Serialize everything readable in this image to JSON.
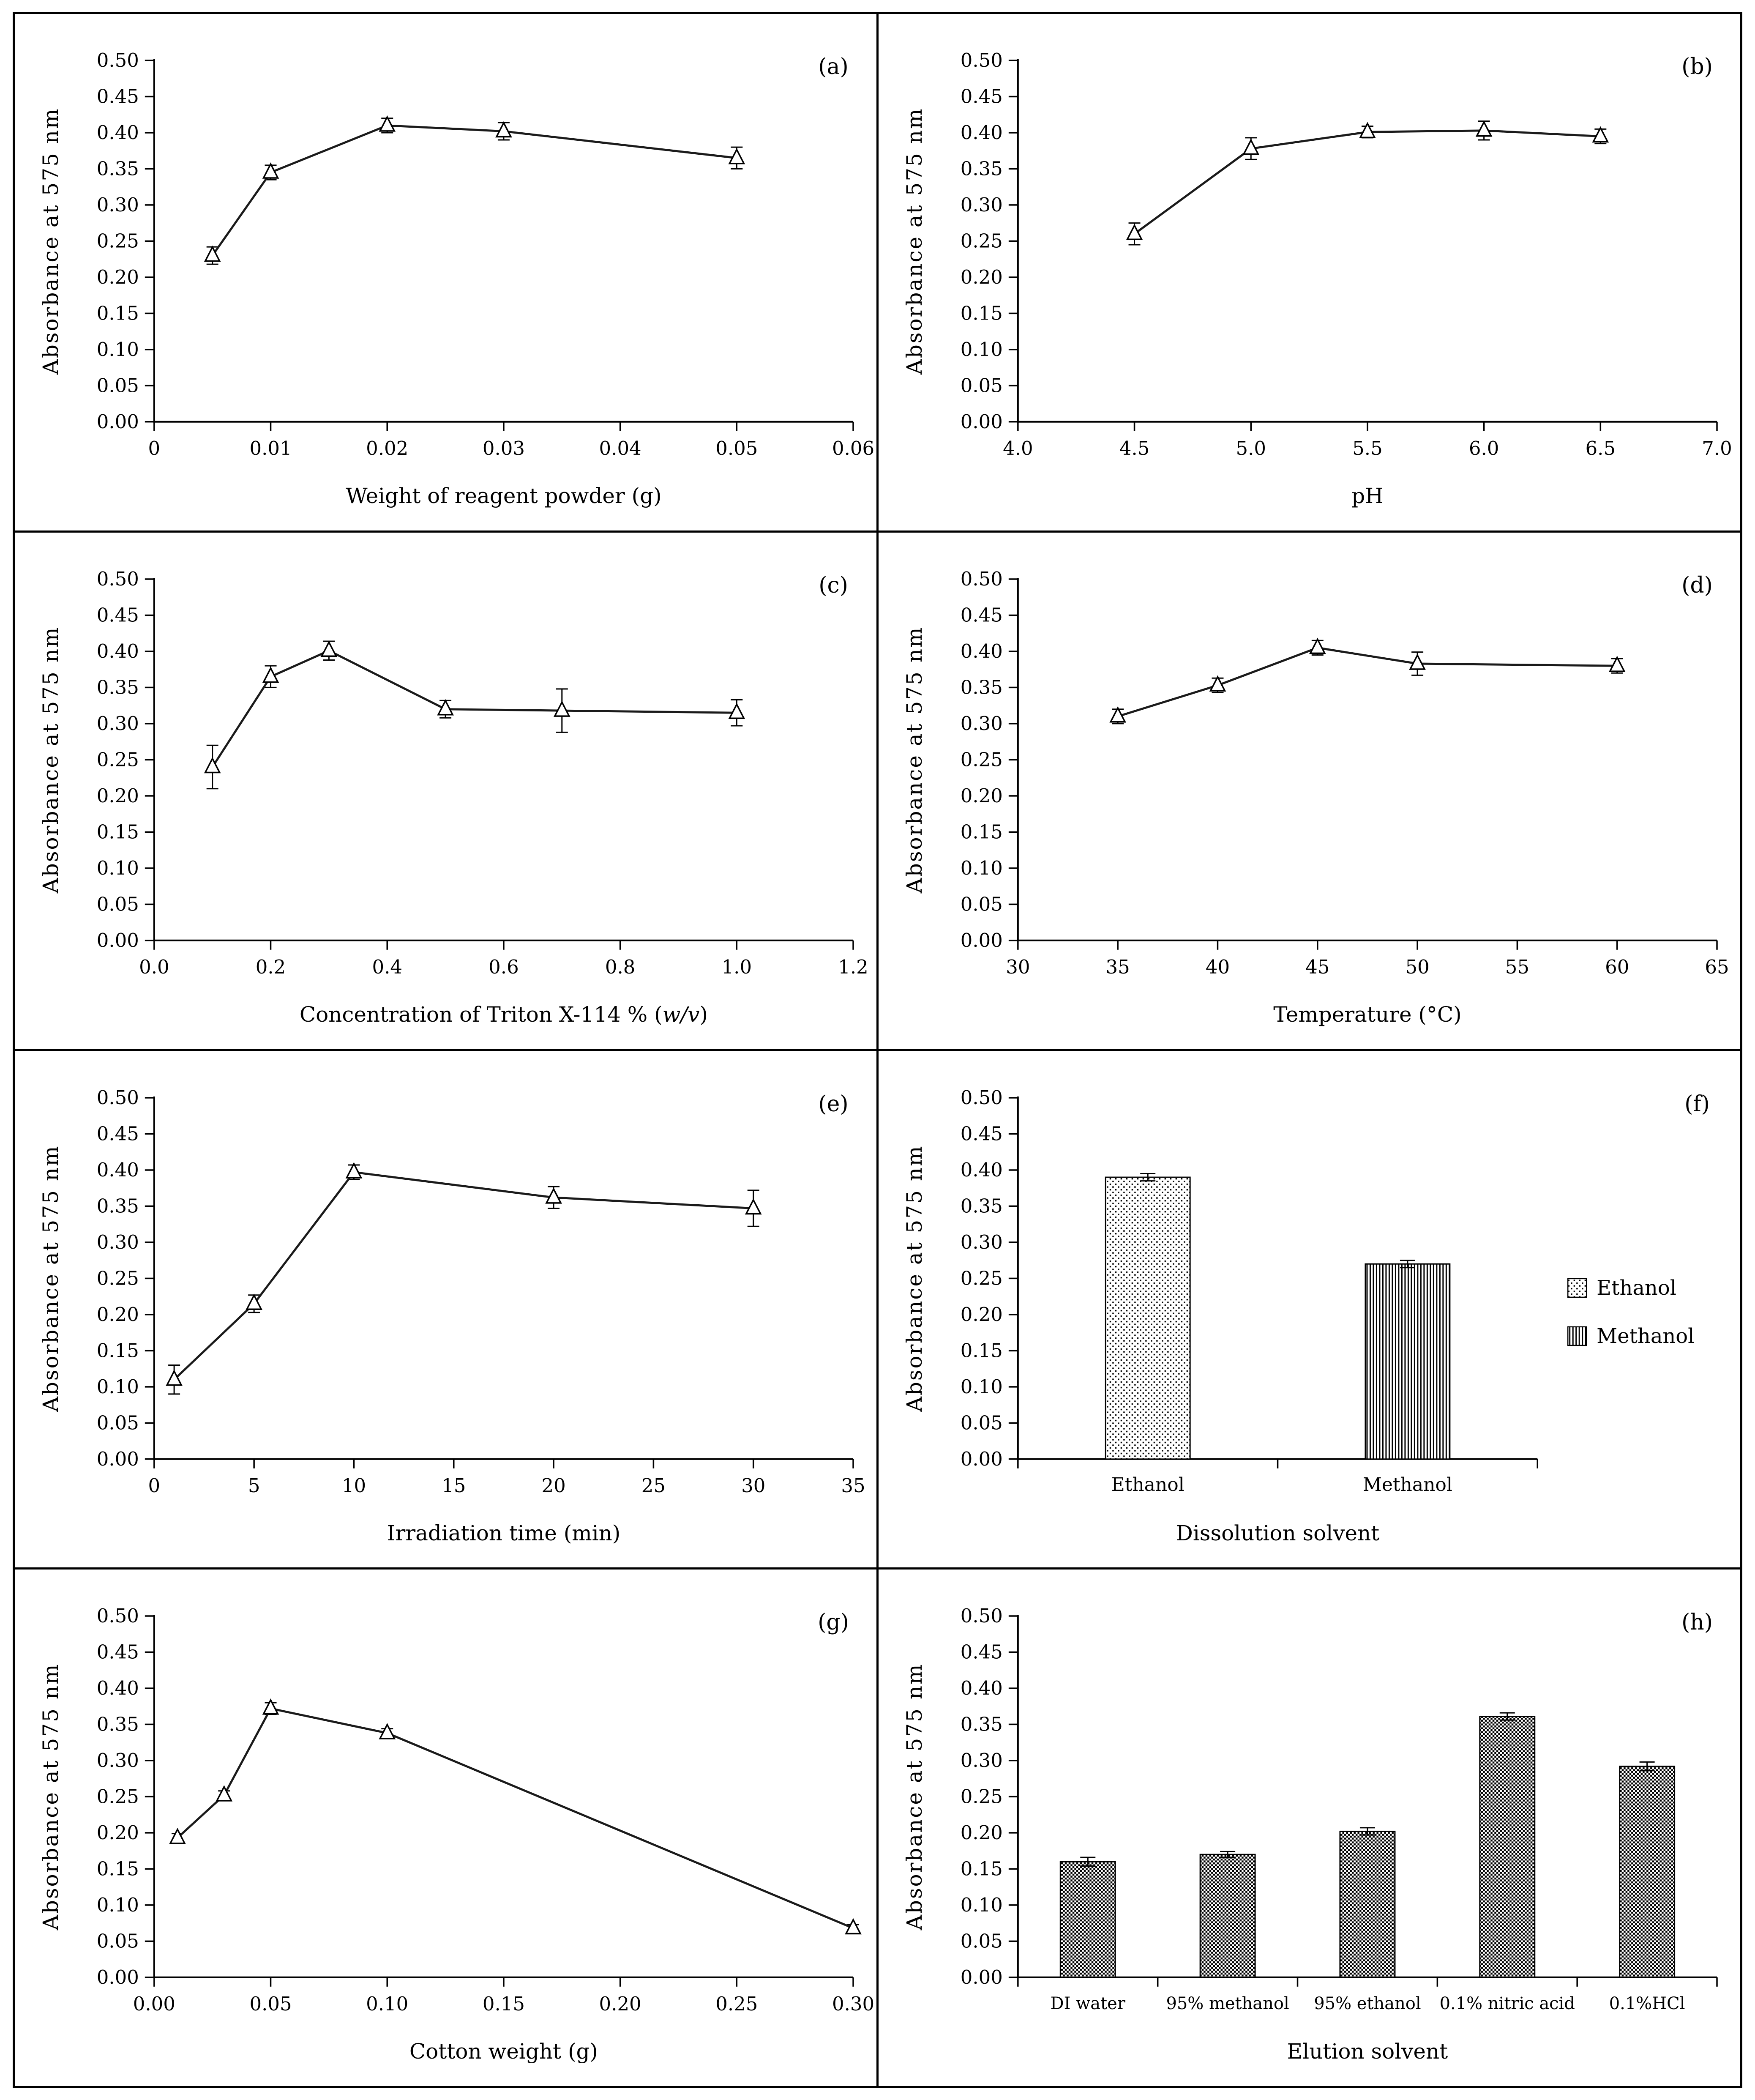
{
  "figure": {
    "background": "#ffffff",
    "border_color": "#000000",
    "axis_color": "#000000",
    "line_color": "#1a1a1a",
    "marker": "open-triangle",
    "ylabel": "Absorbance at 575 nm",
    "ylim": [
      0,
      0.5
    ],
    "ytick_values": [
      0,
      0.05,
      0.1,
      0.15,
      0.2,
      0.25,
      0.3,
      0.35,
      0.4,
      0.45,
      0.5
    ],
    "ytick_labels": [
      "0.00",
      "0.05",
      "0.10",
      "0.15",
      "0.20",
      "0.25",
      "0.30",
      "0.35",
      "0.40",
      "0.45",
      "0.50"
    ]
  },
  "chart_data": [
    {
      "id": "a",
      "panel_label": "(a)",
      "type": "line",
      "title": "",
      "xlabel": "Weight of reagent powder (g)",
      "ylabel": "Absorbance at 575 nm",
      "xlim": [
        0,
        0.06
      ],
      "xticks": [
        0,
        0.01,
        0.02,
        0.03,
        0.04,
        0.05,
        0.06
      ],
      "xtick_labels": [
        "0",
        "0.01",
        "0.02",
        "0.03",
        "0.04",
        "0.05",
        "0.06"
      ],
      "x": [
        0.005,
        0.01,
        0.02,
        0.03,
        0.05
      ],
      "y": [
        0.23,
        0.345,
        0.41,
        0.402,
        0.365
      ],
      "yerr": [
        0.012,
        0.01,
        0.01,
        0.012,
        0.015
      ],
      "ylim": [
        0,
        0.5
      ],
      "grid": "off"
    },
    {
      "id": "b",
      "panel_label": "(b)",
      "type": "line",
      "title": "",
      "xlabel": "pH",
      "ylabel": "Absorbance at 575 nm",
      "xlim": [
        4.0,
        7.0
      ],
      "xticks": [
        4.0,
        4.5,
        5.0,
        5.5,
        6.0,
        6.5,
        7.0
      ],
      "xtick_labels": [
        "4.0",
        "4.5",
        "5.0",
        "5.5",
        "6.0",
        "6.5",
        "7.0"
      ],
      "x": [
        4.5,
        5.0,
        5.5,
        6.0,
        6.5
      ],
      "y": [
        0.26,
        0.378,
        0.401,
        0.403,
        0.395
      ],
      "yerr": [
        0.015,
        0.015,
        0.008,
        0.013,
        0.01
      ],
      "ylim": [
        0,
        0.5
      ],
      "grid": "off"
    },
    {
      "id": "c",
      "panel_label": "(c)",
      "type": "line",
      "title": "",
      "xlabel": "Concentration of Triton X-114 % (w/v)",
      "italic_part": "w/v",
      "ylabel": "Absorbance at 575 nm",
      "xlim": [
        0,
        1.2
      ],
      "xticks": [
        0,
        0.2,
        0.4,
        0.6,
        0.8,
        1.0,
        1.2
      ],
      "xtick_labels": [
        "0.0",
        "0.2",
        "0.4",
        "0.6",
        "0.8",
        "1.0",
        "1.2"
      ],
      "x": [
        0.1,
        0.2,
        0.3,
        0.5,
        0.7,
        1.0
      ],
      "y": [
        0.24,
        0.365,
        0.401,
        0.32,
        0.318,
        0.315
      ],
      "yerr": [
        0.03,
        0.015,
        0.013,
        0.012,
        0.03,
        0.018
      ],
      "ylim": [
        0,
        0.5
      ],
      "grid": "off"
    },
    {
      "id": "d",
      "panel_label": "(d)",
      "type": "line",
      "title": "",
      "xlabel": "Temperature (°C)",
      "ylabel": "Absorbance at 575 nm",
      "xlim": [
        30,
        65
      ],
      "xticks": [
        30,
        35,
        40,
        45,
        50,
        55,
        60,
        65
      ],
      "xtick_labels": [
        "30",
        "35",
        "40",
        "45",
        "50",
        "55",
        "60",
        "65"
      ],
      "x": [
        35,
        40,
        45,
        50,
        60
      ],
      "y": [
        0.31,
        0.353,
        0.405,
        0.383,
        0.38
      ],
      "yerr": [
        0.01,
        0.01,
        0.01,
        0.016,
        0.01
      ],
      "ylim": [
        0,
        0.5
      ],
      "grid": "off"
    },
    {
      "id": "e",
      "panel_label": "(e)",
      "type": "line",
      "title": "",
      "xlabel": "Irradiation time (min)",
      "ylabel": "Absorbance at 575 nm",
      "xlim": [
        0,
        35
      ],
      "xticks": [
        0,
        5,
        10,
        15,
        20,
        25,
        30,
        35
      ],
      "xtick_labels": [
        "0",
        "5",
        "10",
        "15",
        "20",
        "25",
        "30",
        "35"
      ],
      "x": [
        1,
        5,
        10,
        20,
        30
      ],
      "y": [
        0.11,
        0.215,
        0.397,
        0.362,
        0.347
      ],
      "yerr": [
        0.02,
        0.012,
        0.01,
        0.015,
        0.025
      ],
      "ylim": [
        0,
        0.5
      ],
      "grid": "off"
    },
    {
      "id": "f",
      "panel_label": "(f)",
      "type": "bar",
      "title": "",
      "xlabel": "Dissolution solvent",
      "ylabel": "Absorbance at 575 nm",
      "categories": [
        "Ethanol",
        "Methanol"
      ],
      "values": [
        0.39,
        0.27
      ],
      "yerr": [
        0.005,
        0.005
      ],
      "patterns": [
        "dots",
        "vlines"
      ],
      "legend": [
        {
          "label": "Ethanol",
          "pattern": "dots"
        },
        {
          "label": "Methanol",
          "pattern": "vlines"
        }
      ],
      "legend_position": "right",
      "ylim": [
        0,
        0.5
      ],
      "grid": "off"
    },
    {
      "id": "g",
      "panel_label": "(g)",
      "type": "line",
      "title": "",
      "xlabel": "Cotton weight (g)",
      "ylabel": "Absorbance at 575 nm",
      "xlim": [
        0,
        0.3
      ],
      "xticks": [
        0,
        0.05,
        0.1,
        0.15,
        0.2,
        0.25,
        0.3
      ],
      "xtick_labels": [
        "0.00",
        "0.05",
        "0.10",
        "0.15",
        "0.20",
        "0.25",
        "0.30"
      ],
      "x": [
        0.01,
        0.03,
        0.05,
        0.1,
        0.3
      ],
      "y": [
        0.193,
        0.252,
        0.372,
        0.338,
        0.068
      ],
      "yerr": [
        0.006,
        0.006,
        0.008,
        0.006,
        0.005
      ],
      "ylim": [
        0,
        0.5
      ],
      "grid": "off"
    },
    {
      "id": "h",
      "panel_label": "(h)",
      "type": "bar",
      "title": "",
      "xlabel": "Elution solvent",
      "ylabel": "Absorbance at 575 nm",
      "categories": [
        "DI water",
        "95% methanol",
        "95% ethanol",
        "0.1% nitric acid",
        "0.1%HCl"
      ],
      "values": [
        0.16,
        0.17,
        0.202,
        0.361,
        0.292
      ],
      "yerr": [
        0.006,
        0.004,
        0.005,
        0.005,
        0.006
      ],
      "patterns": [
        "checker",
        "checker",
        "checker",
        "checker",
        "checker"
      ],
      "ylim": [
        0,
        0.5
      ],
      "grid": "off"
    }
  ]
}
